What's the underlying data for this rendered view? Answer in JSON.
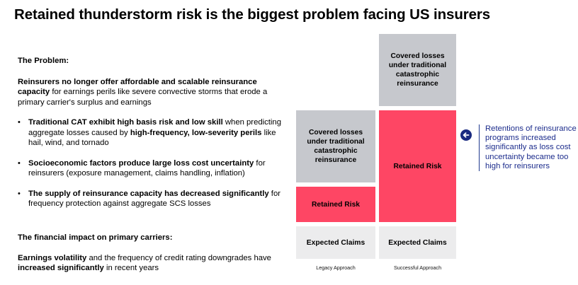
{
  "title": "Retained thunderstorm risk is the biggest problem facing US insurers",
  "problem": {
    "heading": "The Problem:",
    "intro_bold": "Reinsurers no longer offer affordable and scalable reinsurance capacity",
    "intro_rest": " for earnings perils like severe convective storms that erode a primary carrier's surplus and earnings",
    "bullets": [
      {
        "p1": "Traditional CAT exhibit high basis risk and low skill",
        "p2": " when predicting aggregate losses caused by ",
        "p3": "high-frequency, low-severity perils",
        "p4": " like hail, wind, and tornado"
      },
      {
        "p1": "Socioeconomic factors produce large loss cost uncertainty",
        "p2": " for reinsurers (exposure management, claims handling, inflation)"
      },
      {
        "p1": "The supply of reinsurance capacity has decreased significantly",
        "p2": " for frequency protection against aggregate SCS losses"
      }
    ]
  },
  "impact": {
    "heading": "The financial impact on primary carriers:",
    "bold1": "Earnings volatility",
    "text1": " and the frequency of credit rating downgrades have ",
    "bold2": "increased significantly",
    "text2": " in recent years"
  },
  "diagram": {
    "legacy": {
      "covered": "Covered losses under traditional catastrophic reinsurance",
      "retained": "Retained Risk",
      "expected": "Expected Claims",
      "label": "Legacy Approach"
    },
    "successful": {
      "covered": "Covered losses under traditional catastrophic reinsurance",
      "retained": "Retained Risk",
      "expected": "Expected Claims",
      "label": "Successful Approach"
    },
    "colors": {
      "covered": "#c6c8cd",
      "retained": "#fe4664",
      "expected": "#ececed",
      "note": "#1c2c8c"
    }
  },
  "note": {
    "icon": "arrow-left-icon",
    "text": "Retentions of reinsurance programs increased significantly as loss cost uncertainty became too high for reinsurers"
  }
}
